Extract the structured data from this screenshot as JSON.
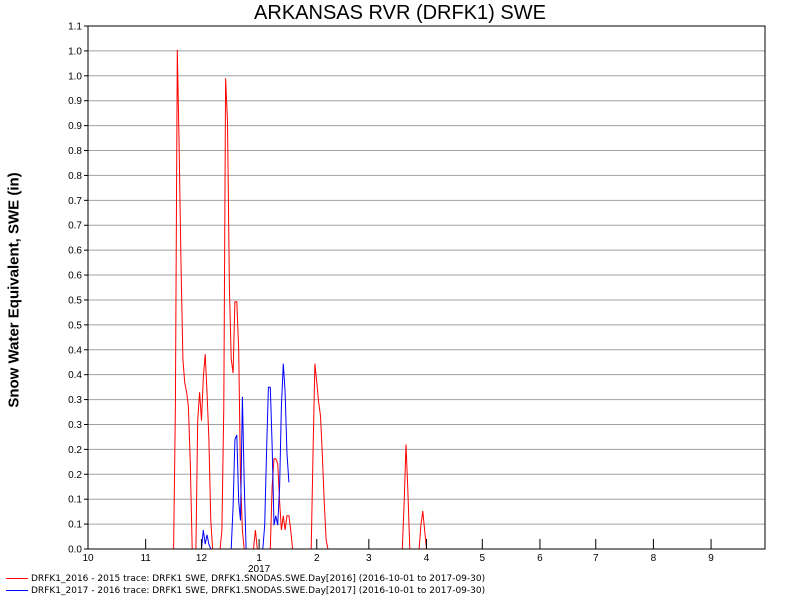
{
  "chart_data": {
    "type": "line",
    "title": "ARKANSAS RVR (DRFK1) SWE",
    "ylabel": "Snow Water Equivalent, SWE (in)",
    "xlabel": "",
    "ylim": [
      0,
      1.1
    ],
    "yticks": [
      "0.0",
      "0.1",
      "0.1",
      "0.2",
      "0.2",
      "0.3",
      "0.3",
      "0.4",
      "0.4",
      "0.5",
      "0.5",
      "0.6",
      "0.6",
      "0.7",
      "0.7",
      "0.8",
      "0.8",
      "0.9",
      "0.9",
      "1.0",
      "1.0",
      "1.1"
    ],
    "xlim": [
      "2016-10-01",
      "2017-09-30"
    ],
    "xticks": [
      {
        "date": "2016-10-01",
        "label": "10"
      },
      {
        "date": "2016-11-01",
        "label": "11"
      },
      {
        "date": "2016-12-01",
        "label": "12"
      },
      {
        "date": "2017-01-01",
        "label": "1"
      },
      {
        "date": "2017-02-01",
        "label": "2"
      },
      {
        "date": "2017-03-01",
        "label": "3"
      },
      {
        "date": "2017-04-01",
        "label": "4"
      },
      {
        "date": "2017-05-01",
        "label": "5"
      },
      {
        "date": "2017-06-01",
        "label": "6"
      },
      {
        "date": "2017-07-01",
        "label": "7"
      },
      {
        "date": "2017-08-01",
        "label": "8"
      },
      {
        "date": "2017-09-01",
        "label": "9"
      }
    ],
    "year_label": "2017",
    "grid": true,
    "legend_position": "bottom",
    "series": [
      {
        "name": "DRFK1_2016 - 2015 trace: DRFK1 SWE, DRFK1.SNODAS.SWE.Day[2016] (2016-10-01 to 2017-09-30)",
        "color": "#ff0000",
        "points": [
          [
            "2016-11-16",
            0
          ],
          [
            "2016-11-17",
            0.3
          ],
          [
            "2016-11-18",
            1.05
          ],
          [
            "2016-11-19",
            0.85
          ],
          [
            "2016-11-20",
            0.6
          ],
          [
            "2016-11-21",
            0.4
          ],
          [
            "2016-11-22",
            0.35
          ],
          [
            "2016-11-23",
            0.33
          ],
          [
            "2016-11-24",
            0.3
          ],
          [
            "2016-11-25",
            0.18
          ],
          [
            "2016-11-26",
            0
          ],
          [
            "2016-11-28",
            0
          ],
          [
            "2016-11-29",
            0.27
          ],
          [
            "2016-11-30",
            0.33
          ],
          [
            "2016-12-01",
            0.27
          ],
          [
            "2016-12-02",
            0.36
          ],
          [
            "2016-12-03",
            0.41
          ],
          [
            "2016-12-04",
            0.33
          ],
          [
            "2016-12-05",
            0.23
          ],
          [
            "2016-12-06",
            0.06
          ],
          [
            "2016-12-07",
            0
          ],
          [
            "2016-12-09",
            0
          ],
          [
            "2016-12-11",
            0
          ],
          [
            "2016-12-12",
            0.04
          ],
          [
            "2016-12-13",
            0.3
          ],
          [
            "2016-12-14",
            0.99
          ],
          [
            "2016-12-15",
            0.9
          ],
          [
            "2016-12-16",
            0.55
          ],
          [
            "2016-12-17",
            0.4
          ],
          [
            "2016-12-18",
            0.37
          ],
          [
            "2016-12-19",
            0.52
          ],
          [
            "2016-12-20",
            0.52
          ],
          [
            "2016-12-21",
            0.42
          ],
          [
            "2016-12-22",
            0.15
          ],
          [
            "2016-12-23",
            0.04
          ],
          [
            "2016-12-24",
            0
          ],
          [
            "2016-12-29",
            0
          ],
          [
            "2016-12-30",
            0.04
          ],
          [
            "2016-12-31",
            0
          ],
          [
            "2017-01-07",
            0
          ],
          [
            "2017-01-08",
            0.13
          ],
          [
            "2017-01-09",
            0.19
          ],
          [
            "2017-01-10",
            0.19
          ],
          [
            "2017-01-11",
            0.18
          ],
          [
            "2017-01-12",
            0.1
          ],
          [
            "2017-01-13",
            0.04
          ],
          [
            "2017-01-14",
            0.07
          ],
          [
            "2017-01-15",
            0.04
          ],
          [
            "2017-01-16",
            0.07
          ],
          [
            "2017-01-17",
            0.07
          ],
          [
            "2017-01-18",
            0.04
          ],
          [
            "2017-01-19",
            0
          ],
          [
            "2017-01-29",
            0
          ],
          [
            "2017-01-30",
            0.2
          ],
          [
            "2017-01-31",
            0.39
          ],
          [
            "2017-02-01",
            0.35
          ],
          [
            "2017-02-02",
            0.31
          ],
          [
            "2017-02-03",
            0.28
          ],
          [
            "2017-02-04",
            0.2
          ],
          [
            "2017-02-05",
            0.1
          ],
          [
            "2017-02-06",
            0.02
          ],
          [
            "2017-02-07",
            0
          ],
          [
            "2017-03-19",
            0
          ],
          [
            "2017-03-20",
            0.1
          ],
          [
            "2017-03-21",
            0.22
          ],
          [
            "2017-03-22",
            0.12
          ],
          [
            "2017-03-23",
            0
          ],
          [
            "2017-03-28",
            0
          ],
          [
            "2017-03-29",
            0.05
          ],
          [
            "2017-03-30",
            0.08
          ],
          [
            "2017-03-31",
            0.04
          ],
          [
            "2017-04-01",
            0
          ]
        ]
      },
      {
        "name": "DRFK1_2017 - 2016 trace: DRFK1 SWE, DRFK1.SNODAS.SWE.Day[2017] (2016-10-01 to 2017-09-30)",
        "color": "#0000ff",
        "points": [
          [
            "2016-12-01",
            0
          ],
          [
            "2016-12-02",
            0.04
          ],
          [
            "2016-12-03",
            0.01
          ],
          [
            "2016-12-04",
            0.03
          ],
          [
            "2016-12-05",
            0.01
          ],
          [
            "2016-12-06",
            0
          ],
          [
            "2016-12-17",
            0
          ],
          [
            "2016-12-18",
            0.09
          ],
          [
            "2016-12-19",
            0.23
          ],
          [
            "2016-12-20",
            0.24
          ],
          [
            "2016-12-21",
            0.1
          ],
          [
            "2016-12-22",
            0.06
          ],
          [
            "2016-12-23",
            0.32
          ],
          [
            "2016-12-24",
            0.14
          ],
          [
            "2016-12-25",
            0
          ],
          [
            "2017-01-03",
            0
          ],
          [
            "2017-01-04",
            0.05
          ],
          [
            "2017-01-05",
            0.2
          ],
          [
            "2017-01-06",
            0.34
          ],
          [
            "2017-01-07",
            0.34
          ],
          [
            "2017-01-08",
            0.22
          ],
          [
            "2017-01-09",
            0.05
          ],
          [
            "2017-01-10",
            0.07
          ],
          [
            "2017-01-11",
            0.05
          ],
          [
            "2017-01-12",
            0.13
          ],
          [
            "2017-01-13",
            0.3
          ],
          [
            "2017-01-14",
            0.39
          ],
          [
            "2017-01-15",
            0.33
          ],
          [
            "2017-01-16",
            0.2
          ],
          [
            "2017-01-17",
            0.14
          ]
        ]
      }
    ]
  }
}
